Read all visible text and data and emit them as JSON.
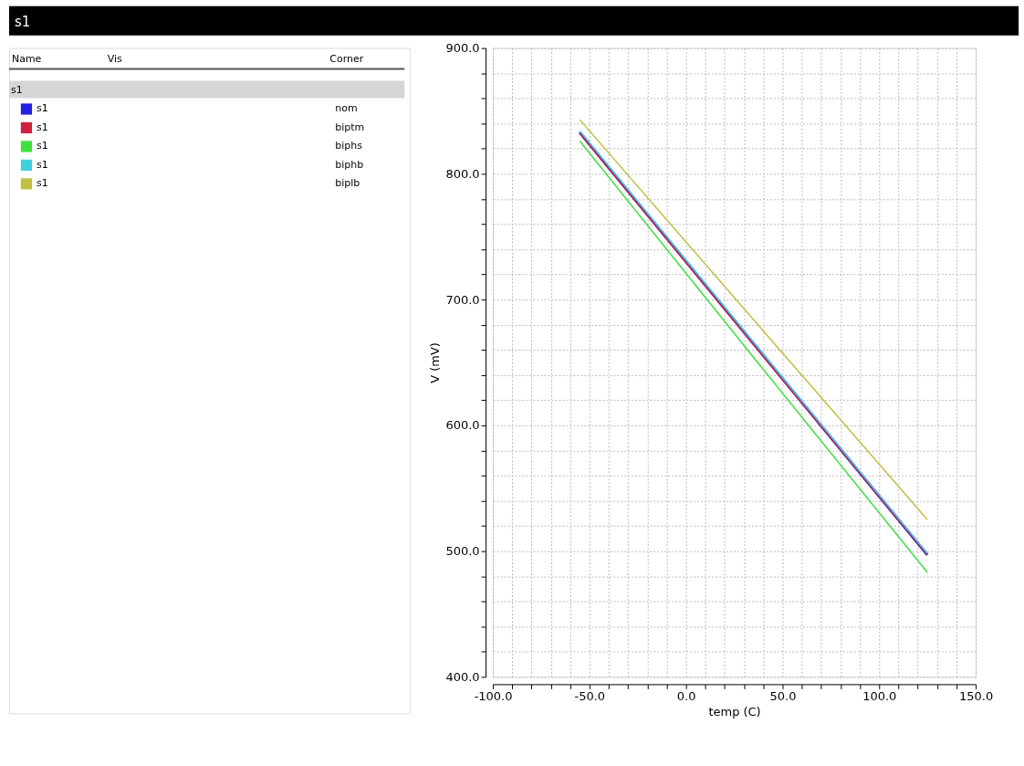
{
  "chart_data": {
    "type": "line",
    "title": "s1",
    "xlabel": "temp (C)",
    "ylabel": "V (mV)",
    "annotations": [
      "Name",
      "Vis",
      "Corner",
      "s1",
      "nom",
      "biptm",
      "biphs",
      "biphb",
      "biplb"
    ],
    "legend": "left",
    "grid": true,
    "line_style": "solid",
    "marker": "none",
    "xlim": [
      -100,
      150
    ],
    "ylim": [
      400,
      900
    ],
    "xticks": [
      {
        "value": -100,
        "label": "-100.0"
      },
      {
        "value": -90,
        "label": null
      },
      {
        "value": -80,
        "label": null
      },
      {
        "value": -70,
        "label": null
      },
      {
        "value": -60,
        "label": null
      },
      {
        "value": -50,
        "label": "-50.0"
      },
      {
        "value": -40,
        "label": null
      },
      {
        "value": -30,
        "label": null
      },
      {
        "value": -20,
        "label": null
      },
      {
        "value": -10,
        "label": null
      },
      {
        "value": 0,
        "label": "0.0"
      },
      {
        "value": 10,
        "label": null
      },
      {
        "value": 20,
        "label": null
      },
      {
        "value": 30,
        "label": null
      },
      {
        "value": 40,
        "label": null
      },
      {
        "value": 50,
        "label": "50.0"
      },
      {
        "value": 60,
        "label": null
      },
      {
        "value": 70,
        "label": null
      },
      {
        "value": 80,
        "label": null
      },
      {
        "value": 90,
        "label": null
      },
      {
        "value": 100,
        "label": "100.0"
      },
      {
        "value": 110,
        "label": null
      },
      {
        "value": 120,
        "label": null
      },
      {
        "value": 130,
        "label": null
      },
      {
        "value": 140,
        "label": null
      },
      {
        "value": 150,
        "label": "150.0"
      }
    ],
    "yticks": [
      {
        "value": 400,
        "label": "400.0"
      },
      {
        "value": 420,
        "label": null
      },
      {
        "value": 440,
        "label": null
      },
      {
        "value": 460,
        "label": null
      },
      {
        "value": 480,
        "label": null
      },
      {
        "value": 500,
        "label": "500.0"
      },
      {
        "value": 520,
        "label": null
      },
      {
        "value": 540,
        "label": null
      },
      {
        "value": 560,
        "label": null
      },
      {
        "value": 580,
        "label": null
      },
      {
        "value": 600,
        "label": "600.0"
      },
      {
        "value": 620,
        "label": null
      },
      {
        "value": 640,
        "label": null
      },
      {
        "value": 660,
        "label": null
      },
      {
        "value": 680,
        "label": null
      },
      {
        "value": 700,
        "label": "700.0"
      },
      {
        "value": 720,
        "label": null
      },
      {
        "value": 740,
        "label": null
      },
      {
        "value": 760,
        "label": null
      },
      {
        "value": 780,
        "label": null
      },
      {
        "value": 800,
        "label": "800.0"
      },
      {
        "value": 820,
        "label": null
      },
      {
        "value": 840,
        "label": null
      },
      {
        "value": 860,
        "label": null
      },
      {
        "value": 880,
        "label": null
      },
      {
        "value": 900,
        "label": "900.0"
      }
    ],
    "x": [
      -55,
      35,
      125
    ],
    "series": [
      {
        "name": "s1",
        "color": "#2020e0",
        "values": [
          833,
          665,
          497
        ]
      },
      {
        "name": "s1",
        "color": "#d02040",
        "values": [
          832,
          664,
          497
        ]
      },
      {
        "name": "s1",
        "color": "#40e040",
        "values": [
          826,
          654,
          483
        ]
      },
      {
        "name": "s1",
        "color": "#40d0e0",
        "values": [
          834,
          666,
          498
        ]
      },
      {
        "name": "s1",
        "color": "#c0c040",
        "values": [
          843,
          684,
          525
        ]
      }
    ]
  }
}
